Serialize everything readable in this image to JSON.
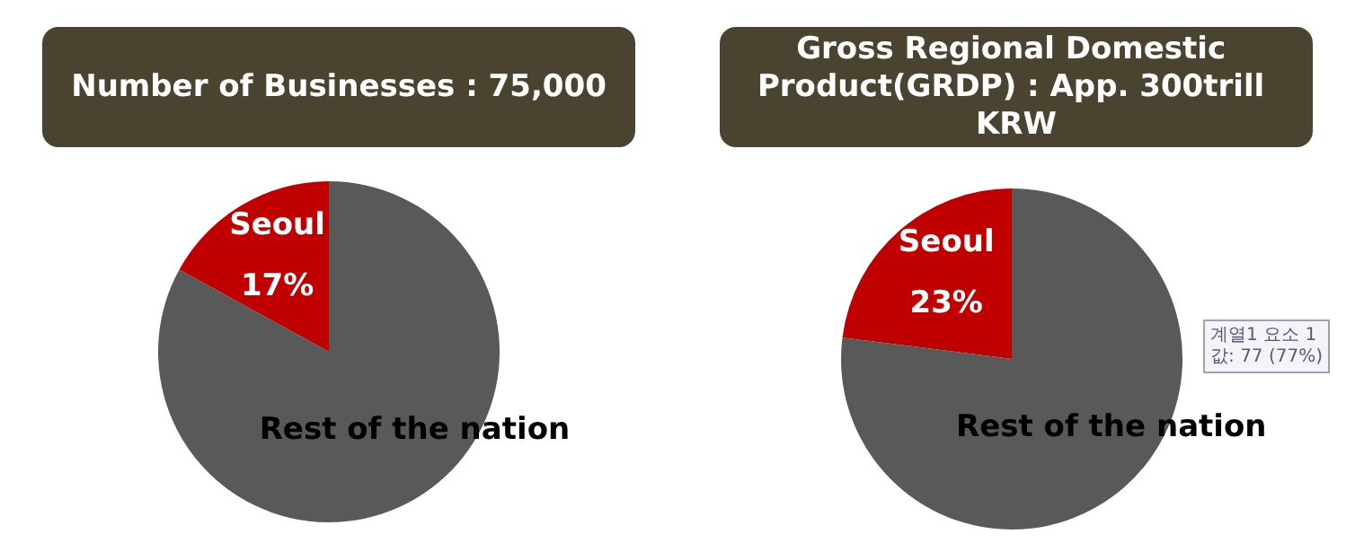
{
  "chart_data": [
    {
      "type": "pie",
      "title": "Number of Businesses : 75,000",
      "categories": [
        "Seoul",
        "Rest of the nation"
      ],
      "values": [
        17,
        83
      ],
      "colors": [
        "#c00000",
        "#595959"
      ],
      "value_labels": [
        "17%",
        null
      ],
      "legend": false
    },
    {
      "type": "pie",
      "title": "Gross Regional Domestic Product(GRDP) : App. 300trill KRW",
      "categories": [
        "Seoul",
        "Rest of the nation"
      ],
      "values": [
        23,
        77
      ],
      "colors": [
        "#c00000",
        "#595959"
      ],
      "value_labels": [
        "23%",
        null
      ],
      "legend": false,
      "annotations": [
        "계열1 요소 1\n값: 77 (77%)"
      ]
    }
  ]
}
